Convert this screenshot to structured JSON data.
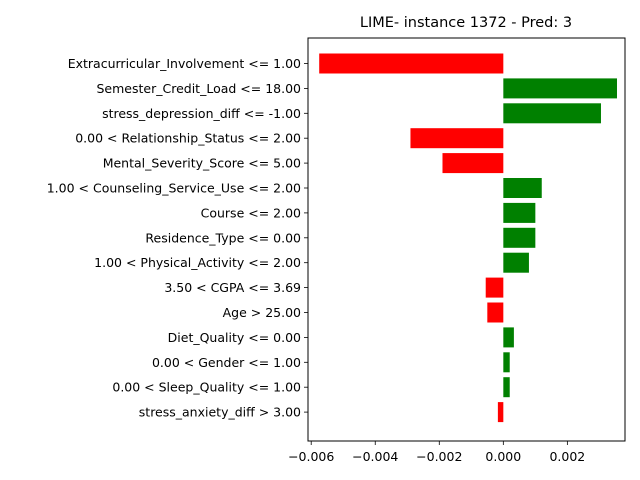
{
  "chart_data": {
    "type": "bar",
    "orientation": "horizontal",
    "title": "LIME- instance 1372 - Pred: 3",
    "xlabel": "",
    "ylabel": "",
    "xlim": [
      -0.0061,
      0.0038
    ],
    "xticks": [
      {
        "value": -0.006,
        "label": "−0.006"
      },
      {
        "value": -0.004,
        "label": "−0.004"
      },
      {
        "value": -0.002,
        "label": "−0.002"
      },
      {
        "value": 0.0,
        "label": "0.000"
      },
      {
        "value": 0.002,
        "label": "0.002"
      }
    ],
    "grid": false,
    "colors": {
      "positive": "#008000",
      "negative": "#ff0000"
    },
    "categories": [
      "Extracurricular_Involvement <= 1.00",
      "Semester_Credit_Load <= 18.00",
      "stress_depression_diff <= -1.00",
      "0.00 < Relationship_Status <= 2.00",
      "Mental_Severity_Score <= 5.00",
      "1.00 < Counseling_Service_Use <= 2.00",
      "Course <= 2.00",
      "Residence_Type <= 0.00",
      "1.00 < Physical_Activity <= 2.00",
      "3.50 < CGPA <= 3.69",
      "Age > 25.00",
      "Diet_Quality <= 0.00",
      "0.00 < Gender <= 1.00",
      "0.00 < Sleep_Quality <= 1.00",
      "stress_anxiety_diff > 3.00"
    ],
    "values": [
      -0.00575,
      0.00355,
      0.00305,
      -0.0029,
      -0.0019,
      0.0012,
      0.001,
      0.001,
      0.0008,
      -0.00055,
      -0.0005,
      0.00033,
      0.0002,
      0.0002,
      -0.00017
    ]
  }
}
